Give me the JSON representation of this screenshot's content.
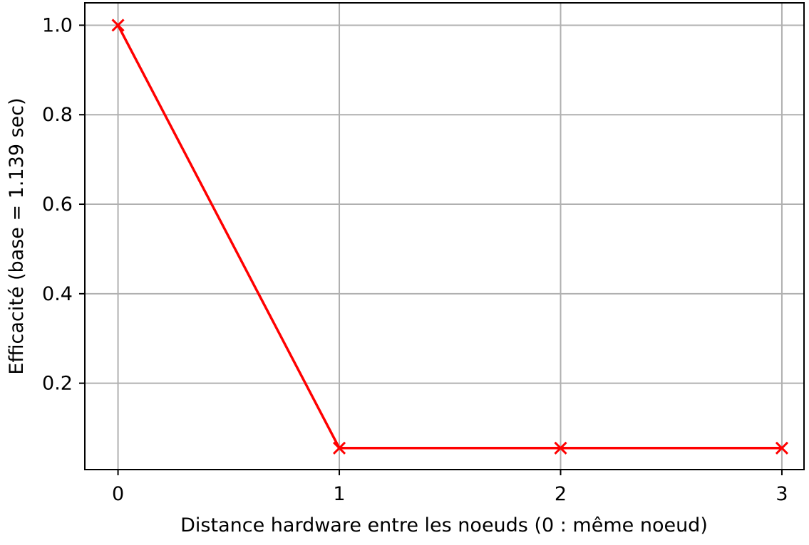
{
  "chart_data": {
    "type": "line",
    "title": "",
    "xlabel": "Distance hardware entre les noeuds (0 : même noeud)",
    "ylabel": "Efficacité (base = 1.139 sec)",
    "x": [
      0,
      1,
      2,
      3
    ],
    "series": [
      {
        "values": [
          1.0,
          0.055,
          0.055,
          0.055
        ],
        "color": "#ff0000",
        "marker": "x"
      }
    ],
    "xlim": [
      -0.15,
      3.1
    ],
    "ylim": [
      0.007,
      1.05
    ],
    "xticks": [
      "0",
      "1",
      "2",
      "3"
    ],
    "yticks": [
      "0.2",
      "0.4",
      "0.6",
      "0.8",
      "1.0"
    ],
    "grid": true,
    "legend": "none"
  }
}
